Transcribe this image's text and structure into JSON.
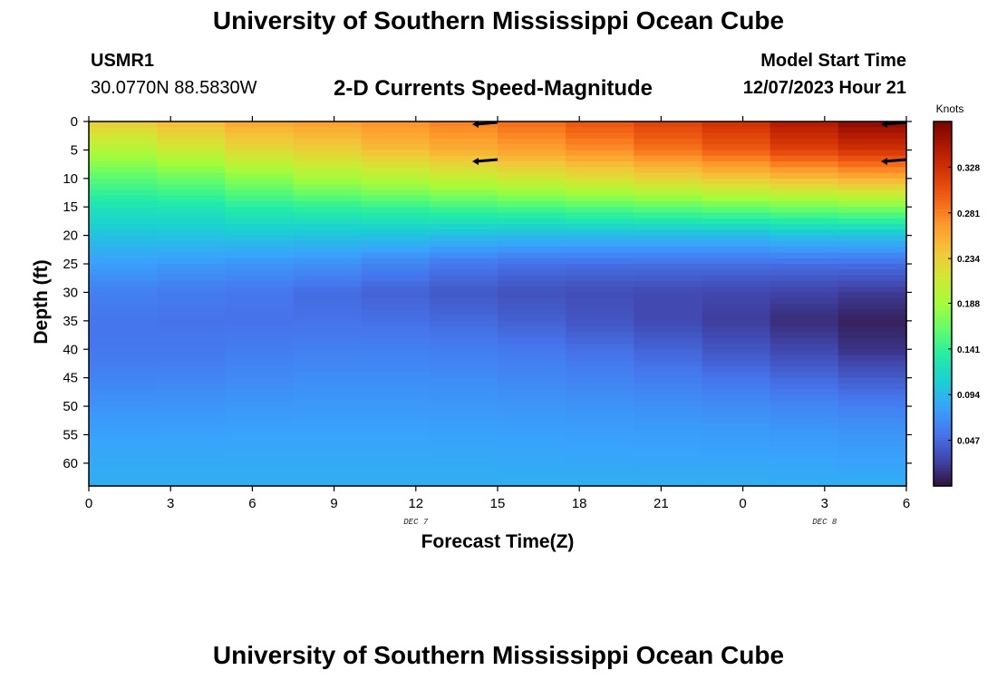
{
  "header": {
    "title": "University of Southern Mississippi Ocean Cube",
    "station_id": "USMR1",
    "coords": "30.0770N  88.5830W",
    "subtitle": "2-D Currents Speed-Magnitude",
    "model_label": "Model Start Time",
    "model_time": "12/07/2023 Hour 21"
  },
  "footer": {
    "title": "University of Southern Mississippi Ocean Cube"
  },
  "chart_data": {
    "type": "heatmap",
    "xlabel": "Forecast Time(Z)",
    "ylabel": "Depth (ft)",
    "x_ticks": [
      "0",
      "3",
      "6",
      "9",
      "12",
      "15",
      "18",
      "21",
      "0",
      "3",
      "6"
    ],
    "x_date_labels": [
      {
        "label": "DEC 7",
        "at_tick": 4
      },
      {
        "label": "DEC 8",
        "at_tick": 9
      }
    ],
    "y_ticks": [
      0,
      5,
      10,
      15,
      20,
      25,
      30,
      35,
      40,
      45,
      50,
      55,
      60
    ],
    "ylim": [
      0,
      64
    ],
    "colorbar": {
      "title": "Knots",
      "range": [
        0,
        0.375
      ],
      "ticks": [
        "0.328",
        "0.281",
        "0.234",
        "0.188",
        "0.141",
        "0.094",
        "0.047"
      ],
      "tick_values": [
        0.328,
        0.281,
        0.234,
        0.188,
        0.141,
        0.094,
        0.047
      ],
      "colormap": [
        "#30123b",
        "#4145ab",
        "#4675ed",
        "#39a2fc",
        "#1bcfd4",
        "#24eca6",
        "#61fc6c",
        "#a4fc3b",
        "#d1e834",
        "#f3c63a",
        "#fe9b2d",
        "#f36315",
        "#d93806",
        "#b11901",
        "#7a0402"
      ]
    },
    "time_hours": [
      0,
      3,
      6,
      9,
      12,
      15,
      18,
      21,
      24,
      27,
      30
    ],
    "depth_ft": [
      0,
      5,
      10,
      15,
      20,
      25,
      30,
      35,
      40,
      45,
      50,
      55,
      60,
      64
    ],
    "speed_knots": [
      [
        0.23,
        0.19,
        0.155,
        0.125,
        0.1,
        0.08,
        0.062,
        0.055,
        0.055,
        0.062,
        0.072,
        0.08,
        0.085,
        0.088
      ],
      [
        0.245,
        0.205,
        0.16,
        0.125,
        0.1,
        0.076,
        0.058,
        0.052,
        0.055,
        0.062,
        0.072,
        0.08,
        0.085,
        0.088
      ],
      [
        0.26,
        0.225,
        0.175,
        0.135,
        0.102,
        0.073,
        0.055,
        0.052,
        0.058,
        0.066,
        0.074,
        0.081,
        0.085,
        0.088
      ],
      [
        0.265,
        0.235,
        0.19,
        0.14,
        0.1,
        0.07,
        0.048,
        0.052,
        0.06,
        0.068,
        0.075,
        0.081,
        0.085,
        0.088
      ],
      [
        0.275,
        0.25,
        0.2,
        0.145,
        0.1,
        0.06,
        0.042,
        0.05,
        0.06,
        0.068,
        0.075,
        0.081,
        0.085,
        0.088
      ],
      [
        0.285,
        0.26,
        0.21,
        0.15,
        0.095,
        0.052,
        0.035,
        0.045,
        0.058,
        0.066,
        0.074,
        0.08,
        0.085,
        0.088
      ],
      [
        0.3,
        0.27,
        0.22,
        0.155,
        0.095,
        0.05,
        0.032,
        0.038,
        0.052,
        0.063,
        0.072,
        0.079,
        0.084,
        0.088
      ],
      [
        0.315,
        0.285,
        0.23,
        0.16,
        0.095,
        0.05,
        0.03,
        0.03,
        0.045,
        0.058,
        0.07,
        0.078,
        0.083,
        0.088
      ],
      [
        0.33,
        0.3,
        0.24,
        0.165,
        0.095,
        0.05,
        0.028,
        0.022,
        0.035,
        0.052,
        0.067,
        0.077,
        0.083,
        0.088
      ],
      [
        0.355,
        0.32,
        0.25,
        0.17,
        0.1,
        0.05,
        0.025,
        0.012,
        0.025,
        0.045,
        0.063,
        0.075,
        0.082,
        0.088
      ],
      [
        0.375,
        0.33,
        0.26,
        0.175,
        0.1,
        0.05,
        0.02,
        0.005,
        0.012,
        0.035,
        0.058,
        0.072,
        0.08,
        0.088
      ]
    ],
    "vectors": [
      {
        "time": 15,
        "depth": 0,
        "direction": "west"
      },
      {
        "time": 15,
        "depth": 7,
        "direction": "west"
      },
      {
        "time": 30,
        "depth": 0,
        "direction": "west"
      },
      {
        "time": 30,
        "depth": 7,
        "direction": "west"
      }
    ]
  }
}
